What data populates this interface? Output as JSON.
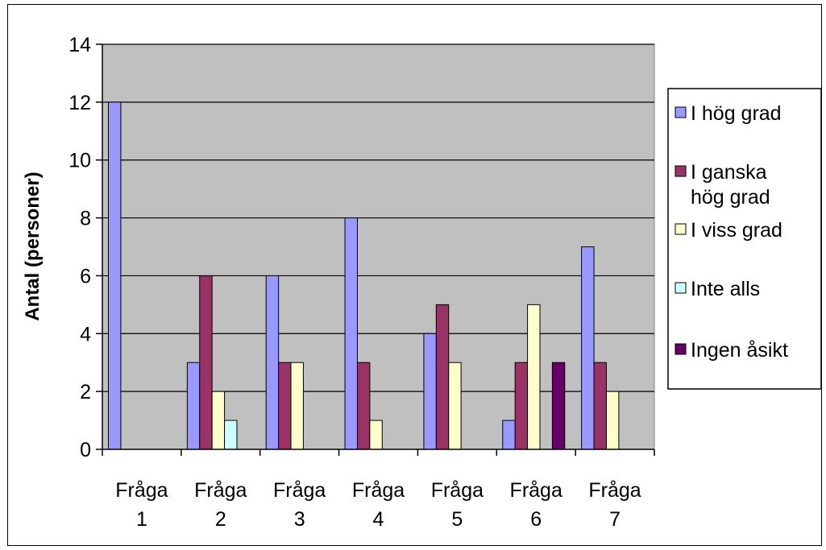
{
  "chart_data": {
    "type": "bar",
    "categories": [
      [
        "Fråga",
        "1"
      ],
      [
        "Fråga",
        "2"
      ],
      [
        "Fråga",
        "3"
      ],
      [
        "Fråga",
        "4"
      ],
      [
        "Fråga",
        "5"
      ],
      [
        "Fråga",
        "6"
      ],
      [
        "Fråga",
        "7"
      ]
    ],
    "series": [
      {
        "name": "I hög grad",
        "color": "#9999ff",
        "values": [
          12,
          3,
          6,
          8,
          4,
          1,
          7
        ]
      },
      {
        "name": "I ganska hög grad",
        "color": "#993366",
        "values": [
          0,
          6,
          3,
          3,
          5,
          3,
          3
        ]
      },
      {
        "name": "I viss grad",
        "color": "#ffffcc",
        "values": [
          0,
          2,
          3,
          1,
          3,
          5,
          2
        ]
      },
      {
        "name": "Inte alls",
        "color": "#ccffff",
        "values": [
          0,
          1,
          0,
          0,
          0,
          0,
          0
        ]
      },
      {
        "name": "Ingen åsikt",
        "color": "#660066",
        "values": [
          0,
          0,
          0,
          0,
          0,
          3,
          0
        ]
      }
    ],
    "legend_lines": [
      [
        "I hög grad"
      ],
      [
        "I ganska",
        "hög grad"
      ],
      [
        "I viss grad"
      ],
      [
        "Inte alls"
      ],
      [
        "Ingen åsikt"
      ]
    ],
    "ylabel": "Antal (personer)",
    "xlabel": "",
    "ylim": [
      0,
      14
    ],
    "yticks": [
      0,
      2,
      4,
      6,
      8,
      10,
      12,
      14
    ],
    "grid": true,
    "plot_background": "#c0c0c0",
    "legend_position": "right"
  }
}
